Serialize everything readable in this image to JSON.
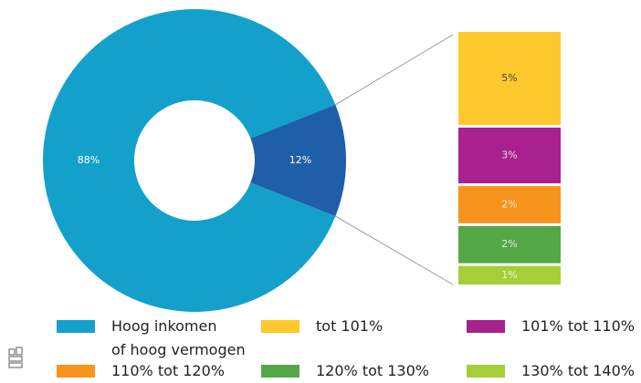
{
  "chart_data": {
    "type": "bar-of-donut",
    "categories": [
      "Hoog inkomen\nof hoog vermogen",
      null
    ],
    "values": [
      88,
      12
    ],
    "value_labels": [
      "88%",
      "12%"
    ],
    "colors": [
      "#13a1cc",
      "#1f5ea9"
    ],
    "breakdown": {
      "categories": [
        "tot 101%",
        "101% tot 110%",
        "110% tot 120%",
        "120% tot 130%",
        "130% tot 140%"
      ],
      "values": [
        5,
        3,
        2,
        2,
        1
      ],
      "value_labels": [
        "5%",
        "3%",
        "2%",
        "2%",
        "1%"
      ],
      "colors": [
        "#fdc82b",
        "#a8218e",
        "#f7941d",
        "#53a845",
        "#a6ce39"
      ]
    }
  }
}
